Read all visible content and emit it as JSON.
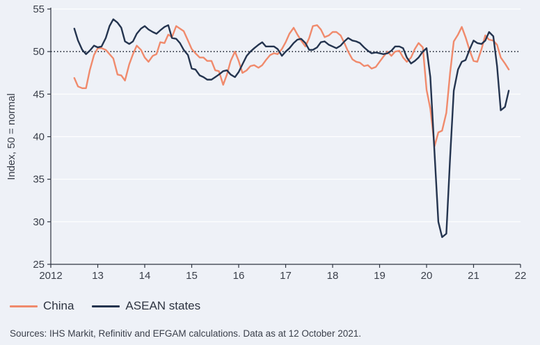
{
  "chart_data": {
    "type": "line",
    "ylabel": "Index, 50 = normal",
    "ylim": [
      25,
      55
    ],
    "yticks": [
      "25",
      "30",
      "35",
      "40",
      "45",
      "50",
      "55"
    ],
    "xlim": [
      2012,
      2022
    ],
    "xticks": [
      {
        "value": 2012,
        "label": "2012"
      },
      {
        "value": 2013,
        "label": "13"
      },
      {
        "value": 2014,
        "label": "14"
      },
      {
        "value": 2015,
        "label": "15"
      },
      {
        "value": 2016,
        "label": "16"
      },
      {
        "value": 2017,
        "label": "17"
      },
      {
        "value": 2018,
        "label": "18"
      },
      {
        "value": 2019,
        "label": "19"
      },
      {
        "value": 2020,
        "label": "20"
      },
      {
        "value": 2021,
        "label": "21"
      },
      {
        "value": 2022,
        "label": "22"
      }
    ],
    "reference_line": 50,
    "series": [
      {
        "name": "China",
        "color": "#f08a6c",
        "points": [
          [
            2012.5,
            46.9
          ],
          [
            2012.58,
            45.9
          ],
          [
            2012.67,
            45.7
          ],
          [
            2012.75,
            45.7
          ],
          [
            2012.83,
            47.8
          ],
          [
            2012.92,
            49.6
          ],
          [
            2013.0,
            50.4
          ],
          [
            2013.08,
            50.4
          ],
          [
            2013.17,
            50.2
          ],
          [
            2013.25,
            49.7
          ],
          [
            2013.33,
            49.2
          ],
          [
            2013.42,
            47.3
          ],
          [
            2013.5,
            47.2
          ],
          [
            2013.58,
            46.6
          ],
          [
            2013.67,
            48.5
          ],
          [
            2013.75,
            49.7
          ],
          [
            2013.83,
            50.7
          ],
          [
            2013.92,
            50.2
          ],
          [
            2014.0,
            49.3
          ],
          [
            2014.08,
            48.8
          ],
          [
            2014.17,
            49.5
          ],
          [
            2014.25,
            49.7
          ],
          [
            2014.33,
            51.1
          ],
          [
            2014.42,
            51.0
          ],
          [
            2014.5,
            52.0
          ],
          [
            2014.58,
            51.7
          ],
          [
            2014.67,
            53.0
          ],
          [
            2014.75,
            52.7
          ],
          [
            2014.83,
            52.4
          ],
          [
            2014.92,
            51.3
          ],
          [
            2015.0,
            50.3
          ],
          [
            2015.08,
            49.8
          ],
          [
            2015.17,
            49.3
          ],
          [
            2015.25,
            49.3
          ],
          [
            2015.33,
            48.9
          ],
          [
            2015.42,
            48.9
          ],
          [
            2015.5,
            47.8
          ],
          [
            2015.58,
            47.7
          ],
          [
            2015.67,
            46.1
          ],
          [
            2015.75,
            47.3
          ],
          [
            2015.83,
            48.9
          ],
          [
            2015.92,
            50.0
          ],
          [
            2016.0,
            48.9
          ],
          [
            2016.08,
            47.5
          ],
          [
            2016.17,
            47.8
          ],
          [
            2016.25,
            48.3
          ],
          [
            2016.33,
            48.4
          ],
          [
            2016.42,
            48.1
          ],
          [
            2016.5,
            48.4
          ],
          [
            2016.58,
            49.0
          ],
          [
            2016.67,
            49.6
          ],
          [
            2016.75,
            49.8
          ],
          [
            2016.83,
            49.7
          ],
          [
            2016.92,
            50.3
          ],
          [
            2017.0,
            51.1
          ],
          [
            2017.08,
            52.1
          ],
          [
            2017.17,
            52.8
          ],
          [
            2017.25,
            52.0
          ],
          [
            2017.33,
            51.3
          ],
          [
            2017.42,
            50.6
          ],
          [
            2017.5,
            51.6
          ],
          [
            2017.58,
            53.0
          ],
          [
            2017.67,
            53.1
          ],
          [
            2017.75,
            52.6
          ],
          [
            2017.83,
            51.7
          ],
          [
            2017.92,
            51.9
          ],
          [
            2018.0,
            52.3
          ],
          [
            2018.08,
            52.3
          ],
          [
            2018.17,
            51.9
          ],
          [
            2018.25,
            51.0
          ],
          [
            2018.33,
            50.0
          ],
          [
            2018.42,
            49.1
          ],
          [
            2018.5,
            48.8
          ],
          [
            2018.58,
            48.7
          ],
          [
            2018.67,
            48.3
          ],
          [
            2018.75,
            48.4
          ],
          [
            2018.83,
            48.0
          ],
          [
            2018.92,
            48.2
          ],
          [
            2019.0,
            48.8
          ],
          [
            2019.08,
            49.4
          ],
          [
            2019.17,
            50.0
          ],
          [
            2019.25,
            49.5
          ],
          [
            2019.33,
            50.0
          ],
          [
            2019.42,
            50.1
          ],
          [
            2019.5,
            49.3
          ],
          [
            2019.58,
            48.8
          ],
          [
            2019.67,
            49.3
          ],
          [
            2019.75,
            50.3
          ],
          [
            2019.83,
            51.0
          ],
          [
            2019.92,
            50.5
          ],
          [
            2020.0,
            45.5
          ],
          [
            2020.08,
            43.3
          ],
          [
            2020.17,
            38.9
          ],
          [
            2020.25,
            40.5
          ],
          [
            2020.33,
            40.7
          ],
          [
            2020.42,
            42.8
          ],
          [
            2020.5,
            47.5
          ],
          [
            2020.58,
            51.2
          ],
          [
            2020.67,
            52.0
          ],
          [
            2020.75,
            52.9
          ],
          [
            2020.83,
            51.7
          ],
          [
            2020.92,
            50.1
          ],
          [
            2021.0,
            48.9
          ],
          [
            2021.08,
            48.8
          ],
          [
            2021.17,
            50.3
          ],
          [
            2021.25,
            51.9
          ],
          [
            2021.33,
            51.4
          ],
          [
            2021.42,
            51.3
          ],
          [
            2021.5,
            50.8
          ],
          [
            2021.58,
            49.3
          ],
          [
            2021.67,
            48.6
          ],
          [
            2021.75,
            47.9
          ]
        ]
      },
      {
        "name": "ASEAN states",
        "color": "#24344f",
        "points": [
          [
            2012.5,
            52.7
          ],
          [
            2012.58,
            51.3
          ],
          [
            2012.67,
            50.2
          ],
          [
            2012.75,
            49.7
          ],
          [
            2012.83,
            50.1
          ],
          [
            2012.92,
            50.7
          ],
          [
            2013.0,
            50.5
          ],
          [
            2013.08,
            50.6
          ],
          [
            2013.17,
            51.6
          ],
          [
            2013.25,
            53.0
          ],
          [
            2013.33,
            53.8
          ],
          [
            2013.42,
            53.4
          ],
          [
            2013.5,
            52.8
          ],
          [
            2013.58,
            51.2
          ],
          [
            2013.67,
            50.9
          ],
          [
            2013.75,
            51.2
          ],
          [
            2013.83,
            52.1
          ],
          [
            2013.92,
            52.7
          ],
          [
            2014.0,
            53.0
          ],
          [
            2014.08,
            52.6
          ],
          [
            2014.17,
            52.3
          ],
          [
            2014.25,
            52.1
          ],
          [
            2014.33,
            52.5
          ],
          [
            2014.42,
            52.9
          ],
          [
            2014.5,
            53.1
          ],
          [
            2014.58,
            51.6
          ],
          [
            2014.67,
            51.5
          ],
          [
            2014.75,
            51.0
          ],
          [
            2014.83,
            50.2
          ],
          [
            2014.92,
            49.6
          ],
          [
            2015.0,
            48.0
          ],
          [
            2015.08,
            47.9
          ],
          [
            2015.17,
            47.2
          ],
          [
            2015.25,
            47.0
          ],
          [
            2015.33,
            46.7
          ],
          [
            2015.42,
            46.7
          ],
          [
            2015.5,
            47.0
          ],
          [
            2015.58,
            47.3
          ],
          [
            2015.67,
            47.7
          ],
          [
            2015.75,
            47.8
          ],
          [
            2015.83,
            47.3
          ],
          [
            2015.92,
            47.0
          ],
          [
            2016.0,
            47.6
          ],
          [
            2016.08,
            48.5
          ],
          [
            2016.17,
            49.5
          ],
          [
            2016.25,
            50.0
          ],
          [
            2016.33,
            50.4
          ],
          [
            2016.42,
            50.8
          ],
          [
            2016.5,
            51.1
          ],
          [
            2016.58,
            50.6
          ],
          [
            2016.67,
            50.6
          ],
          [
            2016.75,
            50.6
          ],
          [
            2016.83,
            50.3
          ],
          [
            2016.92,
            49.5
          ],
          [
            2017.0,
            50.0
          ],
          [
            2017.08,
            50.4
          ],
          [
            2017.17,
            51.0
          ],
          [
            2017.25,
            51.4
          ],
          [
            2017.33,
            51.5
          ],
          [
            2017.42,
            51.0
          ],
          [
            2017.5,
            50.2
          ],
          [
            2017.58,
            50.2
          ],
          [
            2017.67,
            50.5
          ],
          [
            2017.75,
            51.1
          ],
          [
            2017.83,
            51.2
          ],
          [
            2017.92,
            50.8
          ],
          [
            2018.0,
            50.6
          ],
          [
            2018.08,
            50.4
          ],
          [
            2018.17,
            50.7
          ],
          [
            2018.25,
            51.2
          ],
          [
            2018.33,
            51.6
          ],
          [
            2018.42,
            51.3
          ],
          [
            2018.5,
            51.2
          ],
          [
            2018.58,
            51.0
          ],
          [
            2018.67,
            50.5
          ],
          [
            2018.75,
            50.1
          ],
          [
            2018.83,
            49.8
          ],
          [
            2018.92,
            49.9
          ],
          [
            2019.0,
            49.8
          ],
          [
            2019.08,
            49.7
          ],
          [
            2019.17,
            49.8
          ],
          [
            2019.25,
            50.1
          ],
          [
            2019.33,
            50.6
          ],
          [
            2019.42,
            50.6
          ],
          [
            2019.5,
            50.4
          ],
          [
            2019.58,
            49.3
          ],
          [
            2019.67,
            48.6
          ],
          [
            2019.75,
            48.9
          ],
          [
            2019.83,
            49.3
          ],
          [
            2019.92,
            50.0
          ],
          [
            2020.0,
            50.4
          ],
          [
            2020.08,
            47.0
          ],
          [
            2020.17,
            38.0
          ],
          [
            2020.25,
            30.0
          ],
          [
            2020.33,
            28.2
          ],
          [
            2020.42,
            28.6
          ],
          [
            2020.5,
            37.5
          ],
          [
            2020.58,
            45.4
          ],
          [
            2020.67,
            47.9
          ],
          [
            2020.75,
            48.8
          ],
          [
            2020.83,
            49.0
          ],
          [
            2020.92,
            50.3
          ],
          [
            2021.0,
            51.3
          ],
          [
            2021.08,
            51.0
          ],
          [
            2021.17,
            50.9
          ],
          [
            2021.25,
            51.3
          ],
          [
            2021.33,
            52.3
          ],
          [
            2021.42,
            51.8
          ],
          [
            2021.5,
            48.3
          ],
          [
            2021.58,
            43.1
          ],
          [
            2021.67,
            43.5
          ],
          [
            2021.75,
            45.4
          ]
        ]
      }
    ],
    "legend": [
      {
        "label": "China",
        "color": "#f08a6c"
      },
      {
        "label": "ASEAN states",
        "color": "#24344f"
      }
    ],
    "source": "Sources: IHS Markit, Refinitiv and EFGAM calculations. Data as at 12 October 2021."
  }
}
